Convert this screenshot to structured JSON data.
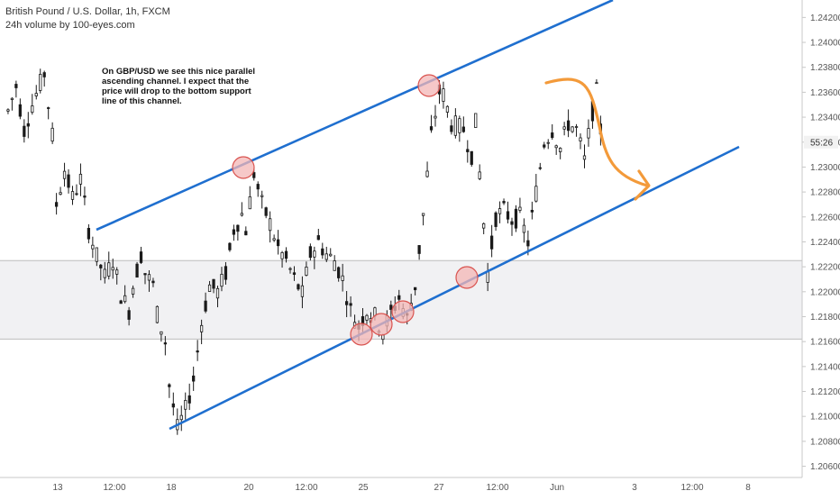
{
  "header": {
    "symbol_line": "British Pound / U.S. Dollar, 1h, FXCM",
    "volume_line": "24h volume by 100-eyes.com"
  },
  "annotation": {
    "lines": [
      "On GBP/USD we see this nice parallel",
      "ascending channel. I expect that the",
      "price will drop to the bottom support",
      "line of this channel."
    ]
  },
  "countdown": "55:26",
  "colors": {
    "channel_line": "#1f6fcf",
    "arrow": "#f39a3a",
    "candle": "#1a1a1a",
    "zone_fill": "#f1f1f3",
    "zone_border": "#bdbdbd",
    "circle_fill": "#f3b5b5",
    "circle_stroke": "#d9534f",
    "axis_text": "#555555"
  },
  "chart_data": {
    "type": "candlestick",
    "symbol": "GBP/USD",
    "timeframe": "1h",
    "ylim": [
      1.2051,
      1.2434
    ],
    "y_ticks": [
      "1.24200",
      "1.24000",
      "1.23800",
      "1.23600",
      "1.23400",
      "1.23200",
      "1.23000",
      "1.22800",
      "1.22600",
      "1.22400",
      "1.22200",
      "1.22000",
      "1.21800",
      "1.21600",
      "1.21400",
      "1.21200",
      "1.21000",
      "1.20800",
      "1.20600"
    ],
    "x_ticks": [
      "13",
      "12:00",
      "18",
      "20",
      "12:00",
      "25",
      "27",
      "12:00",
      "Jun",
      "3",
      "12:00",
      "8"
    ],
    "price_path": [
      [
        0,
        1.2345
      ],
      [
        2,
        1.2365
      ],
      [
        4,
        1.233
      ],
      [
        6,
        1.235
      ],
      [
        9,
        1.2375
      ],
      [
        11,
        1.2325
      ],
      [
        12,
        1.227
      ],
      [
        14,
        1.2298
      ],
      [
        16,
        1.2275
      ],
      [
        18,
        1.229
      ],
      [
        20,
        1.225
      ],
      [
        22,
        1.2228
      ],
      [
        24,
        1.2212
      ],
      [
        26,
        1.2225
      ],
      [
        28,
        1.2198
      ],
      [
        30,
        1.2185
      ],
      [
        31,
        1.2205
      ],
      [
        33,
        1.223
      ],
      [
        34,
        1.2215
      ],
      [
        36,
        1.2205
      ],
      [
        37,
        1.2182
      ],
      [
        39,
        1.216
      ],
      [
        40,
        1.2125
      ],
      [
        42,
        1.209
      ],
      [
        44,
        1.2105
      ],
      [
        46,
        1.213
      ],
      [
        48,
        1.2175
      ],
      [
        50,
        1.2205
      ],
      [
        52,
        1.22
      ],
      [
        54,
        1.2215
      ],
      [
        56,
        1.225
      ],
      [
        58,
        1.2262
      ],
      [
        59,
        1.225
      ],
      [
        61,
        1.2295
      ],
      [
        63,
        1.227
      ],
      [
        65,
        1.2255
      ],
      [
        67,
        1.2235
      ],
      [
        69,
        1.2225
      ],
      [
        71,
        1.221
      ],
      [
        73,
        1.2198
      ],
      [
        75,
        1.223
      ],
      [
        77,
        1.224
      ],
      [
        79,
        1.223
      ],
      [
        81,
        1.2225
      ],
      [
        83,
        1.221
      ],
      [
        85,
        1.2185
      ],
      [
        87,
        1.2172
      ],
      [
        89,
        1.2185
      ],
      [
        91,
        1.218
      ],
      [
        93,
        1.2168
      ],
      [
        95,
        1.2183
      ],
      [
        97,
        1.2195
      ],
      [
        99,
        1.2178
      ],
      [
        101,
        1.2205
      ],
      [
        103,
        1.2262
      ],
      [
        105,
        1.2325
      ],
      [
        107,
        1.236
      ],
      [
        108,
        1.2358
      ],
      [
        110,
        1.2335
      ],
      [
        113,
        1.233
      ],
      [
        115,
        1.231
      ],
      [
        116,
        1.2335
      ],
      [
        118,
        1.2255
      ],
      [
        119,
        1.2215
      ],
      [
        121,
        1.226
      ],
      [
        123,
        1.2265
      ],
      [
        125,
        1.2258
      ],
      [
        127,
        1.226
      ],
      [
        129,
        1.224
      ],
      [
        131,
        1.228
      ],
      [
        133,
        1.232
      ],
      [
        135,
        1.233
      ],
      [
        137,
        1.2315
      ],
      [
        139,
        1.2335
      ],
      [
        141,
        1.233
      ],
      [
        143,
        1.2305
      ],
      [
        145,
        1.2345
      ],
      [
        146,
        1.236
      ],
      [
        147,
        1.233
      ]
    ],
    "channel": {
      "upper": {
        "from": [
          0,
          1.2242
        ],
        "to": [
          148,
          1.2438
        ]
      },
      "lower": {
        "from": [
          0,
          1.208
        ],
        "to": [
          148,
          1.2272
        ]
      }
    },
    "support_zone": [
      1.2162,
      1.2225
    ],
    "touch_points": [
      [
        39,
        1.2292
      ],
      [
        79,
        1.2362
      ],
      [
        48,
        1.216
      ],
      [
        54,
        1.2166
      ],
      [
        60,
        1.2175
      ],
      [
        77,
        1.2204
      ]
    ],
    "forecast_arrow": [
      [
        0,
        1.2364
      ],
      [
        10,
        1.2345
      ],
      [
        20,
        1.2298
      ],
      [
        30,
        1.2278
      ]
    ]
  }
}
